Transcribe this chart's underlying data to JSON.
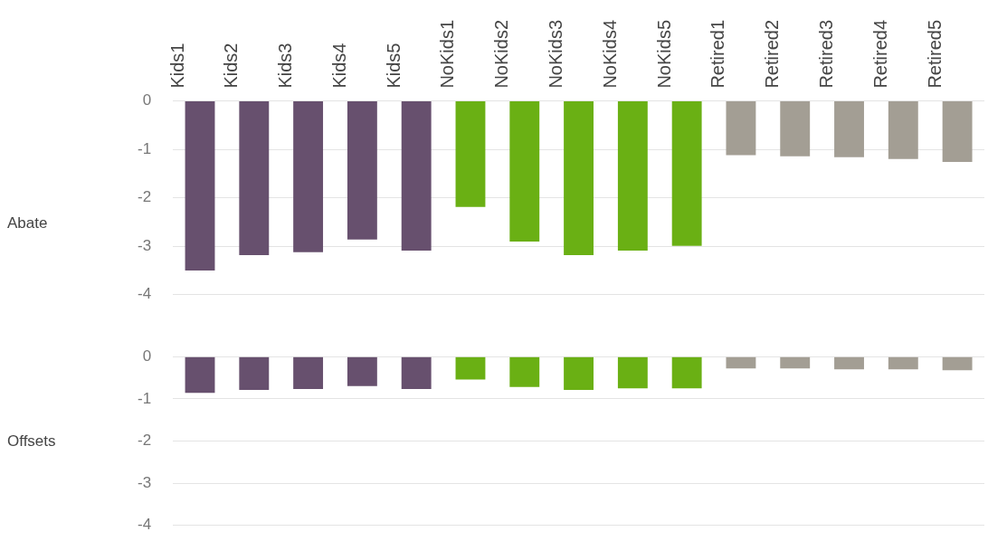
{
  "chart_data": [
    {
      "type": "bar",
      "ylabel": "Abate",
      "categories": [
        "Kids1",
        "Kids2",
        "Kids3",
        "Kids4",
        "Kids5",
        "NoKids1",
        "NoKids2",
        "NoKids3",
        "NoKids4",
        "NoKids5",
        "Retired1",
        "Retired2",
        "Retired3",
        "Retired4",
        "Retired5"
      ],
      "values": [
        -3.5,
        -3.18,
        -3.12,
        -2.86,
        -3.09,
        -2.19,
        -2.9,
        -3.18,
        -3.09,
        -2.99,
        -1.12,
        -1.14,
        -1.16,
        -1.2,
        -1.26
      ],
      "colors": [
        "#67506e",
        "#67506e",
        "#67506e",
        "#67506e",
        "#67506e",
        "#6ab014",
        "#6ab014",
        "#6ab014",
        "#6ab014",
        "#6ab014",
        "#a39e94",
        "#a39e94",
        "#a39e94",
        "#a39e94",
        "#a39e94"
      ],
      "ylim": [
        -4,
        0
      ],
      "yticks": [
        -4,
        -3,
        -2,
        -1,
        0
      ],
      "grid": "y",
      "legend": false
    },
    {
      "type": "bar",
      "ylabel": "Offsets",
      "values": [
        -0.86,
        -0.79,
        -0.77,
        -0.7,
        -0.77,
        -0.54,
        -0.72,
        -0.79,
        -0.75,
        -0.75,
        -0.28,
        -0.28,
        -0.3,
        -0.3,
        -0.32
      ],
      "colors": [
        "#67506e",
        "#67506e",
        "#67506e",
        "#67506e",
        "#67506e",
        "#6ab014",
        "#6ab014",
        "#6ab014",
        "#6ab014",
        "#6ab014",
        "#a39e94",
        "#a39e94",
        "#a39e94",
        "#a39e94",
        "#a39e94"
      ],
      "ylim": [
        -4,
        0
      ],
      "yticks": [
        -4,
        -3,
        -2,
        -1,
        0
      ],
      "grid": "y",
      "legend": false,
      "tick_labels": "y"
    }
  ]
}
